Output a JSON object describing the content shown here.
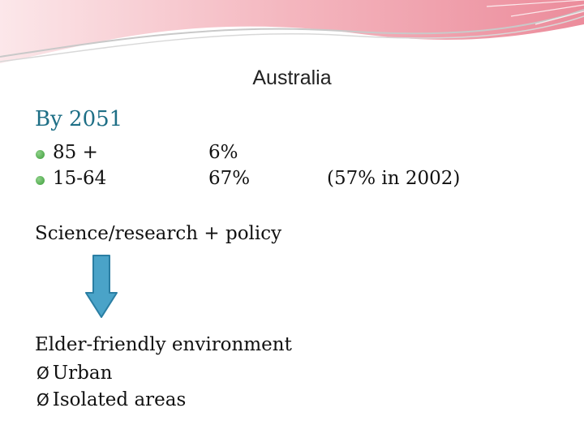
{
  "slide": {
    "title": "Australia",
    "heading": "By 2051",
    "bullets": [
      {
        "label": "85 +",
        "value": "6%"
      },
      {
        "label": "15-64",
        "value": "67%"
      }
    ],
    "note": "(57% in 2002)",
    "policy_line": "Science/research + policy",
    "environment_line": "Elder-friendly environment",
    "sub_items": [
      {
        "marker": "Ø",
        "label": "Urban"
      },
      {
        "marker": "Ø",
        "label": "Isolated areas"
      }
    ],
    "colors": {
      "heading": "#1e6f86",
      "bullet": "#3c9e39",
      "arrow_fill": "#4aa3c8",
      "arrow_stroke": "#2a7ea3",
      "banner_pink": "#e8788a"
    },
    "icons": {
      "bullet": "green-dot-icon",
      "arrow": "down-arrow-icon",
      "sub_marker": "arrow-bullet-icon"
    }
  }
}
